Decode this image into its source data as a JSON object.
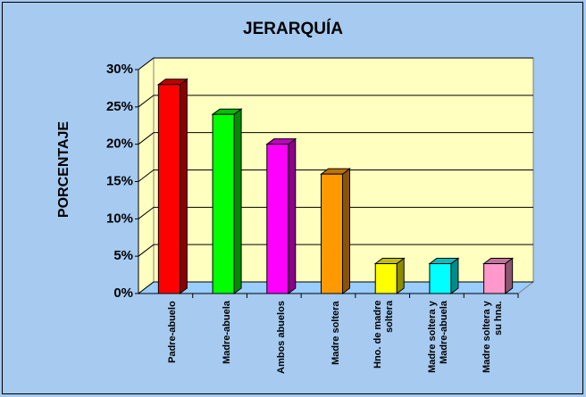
{
  "chart_data": {
    "type": "bar3d",
    "title": "JERARQUÍA",
    "y_label": "PORCENTAJE",
    "categories": [
      "Padre-abuelo",
      "Madre-abuela",
      "Ambos abuelos",
      "Madre soltera",
      "Hno. de madre soltera",
      "Madre soltera y Madre-abuela",
      "Madre soltera y su hna."
    ],
    "values": [
      28,
      24,
      20,
      16,
      4,
      4,
      4
    ],
    "colors": [
      "#ff0000",
      "#00ff00",
      "#ff00ff",
      "#ff9900",
      "#ffff00",
      "#00ffff",
      "#ff99cc"
    ],
    "ylim": [
      0,
      30
    ],
    "yticks": [
      {
        "value": 0,
        "label": "0%"
      },
      {
        "value": 5,
        "label": "5%"
      },
      {
        "value": 10,
        "label": "10%"
      },
      {
        "value": 15,
        "label": "15%"
      },
      {
        "value": 20,
        "label": "20%"
      },
      {
        "value": 25,
        "label": "25%"
      },
      {
        "value": 30,
        "label": "30%"
      }
    ],
    "grid": true
  }
}
